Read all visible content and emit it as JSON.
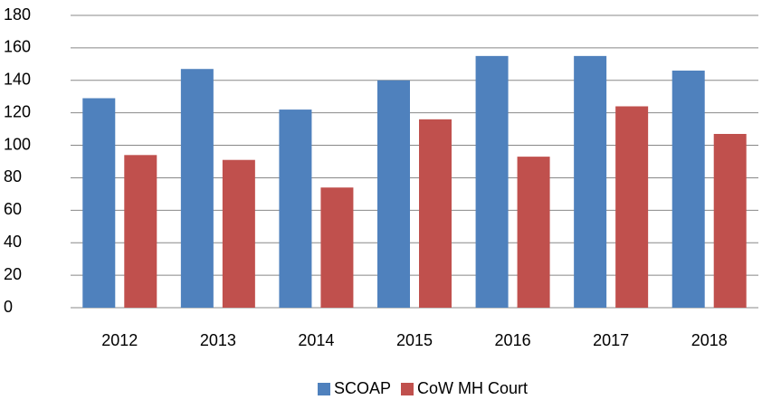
{
  "chart_data": {
    "type": "bar",
    "categories": [
      "2012",
      "2013",
      "2014",
      "2015",
      "2016",
      "2017",
      "2018"
    ],
    "series": [
      {
        "name": "SCOAP",
        "color": "#4f81bd",
        "values": [
          129,
          147,
          122,
          140,
          155,
          155,
          146
        ]
      },
      {
        "name": "CoW MH Court",
        "color": "#c0504d",
        "values": [
          94,
          91,
          74,
          116,
          93,
          124,
          107
        ]
      }
    ],
    "ylim": [
      0,
      180
    ],
    "yticks": [
      0,
      20,
      40,
      60,
      80,
      100,
      120,
      140,
      160,
      180
    ],
    "grid": true,
    "legend": "bottom"
  }
}
